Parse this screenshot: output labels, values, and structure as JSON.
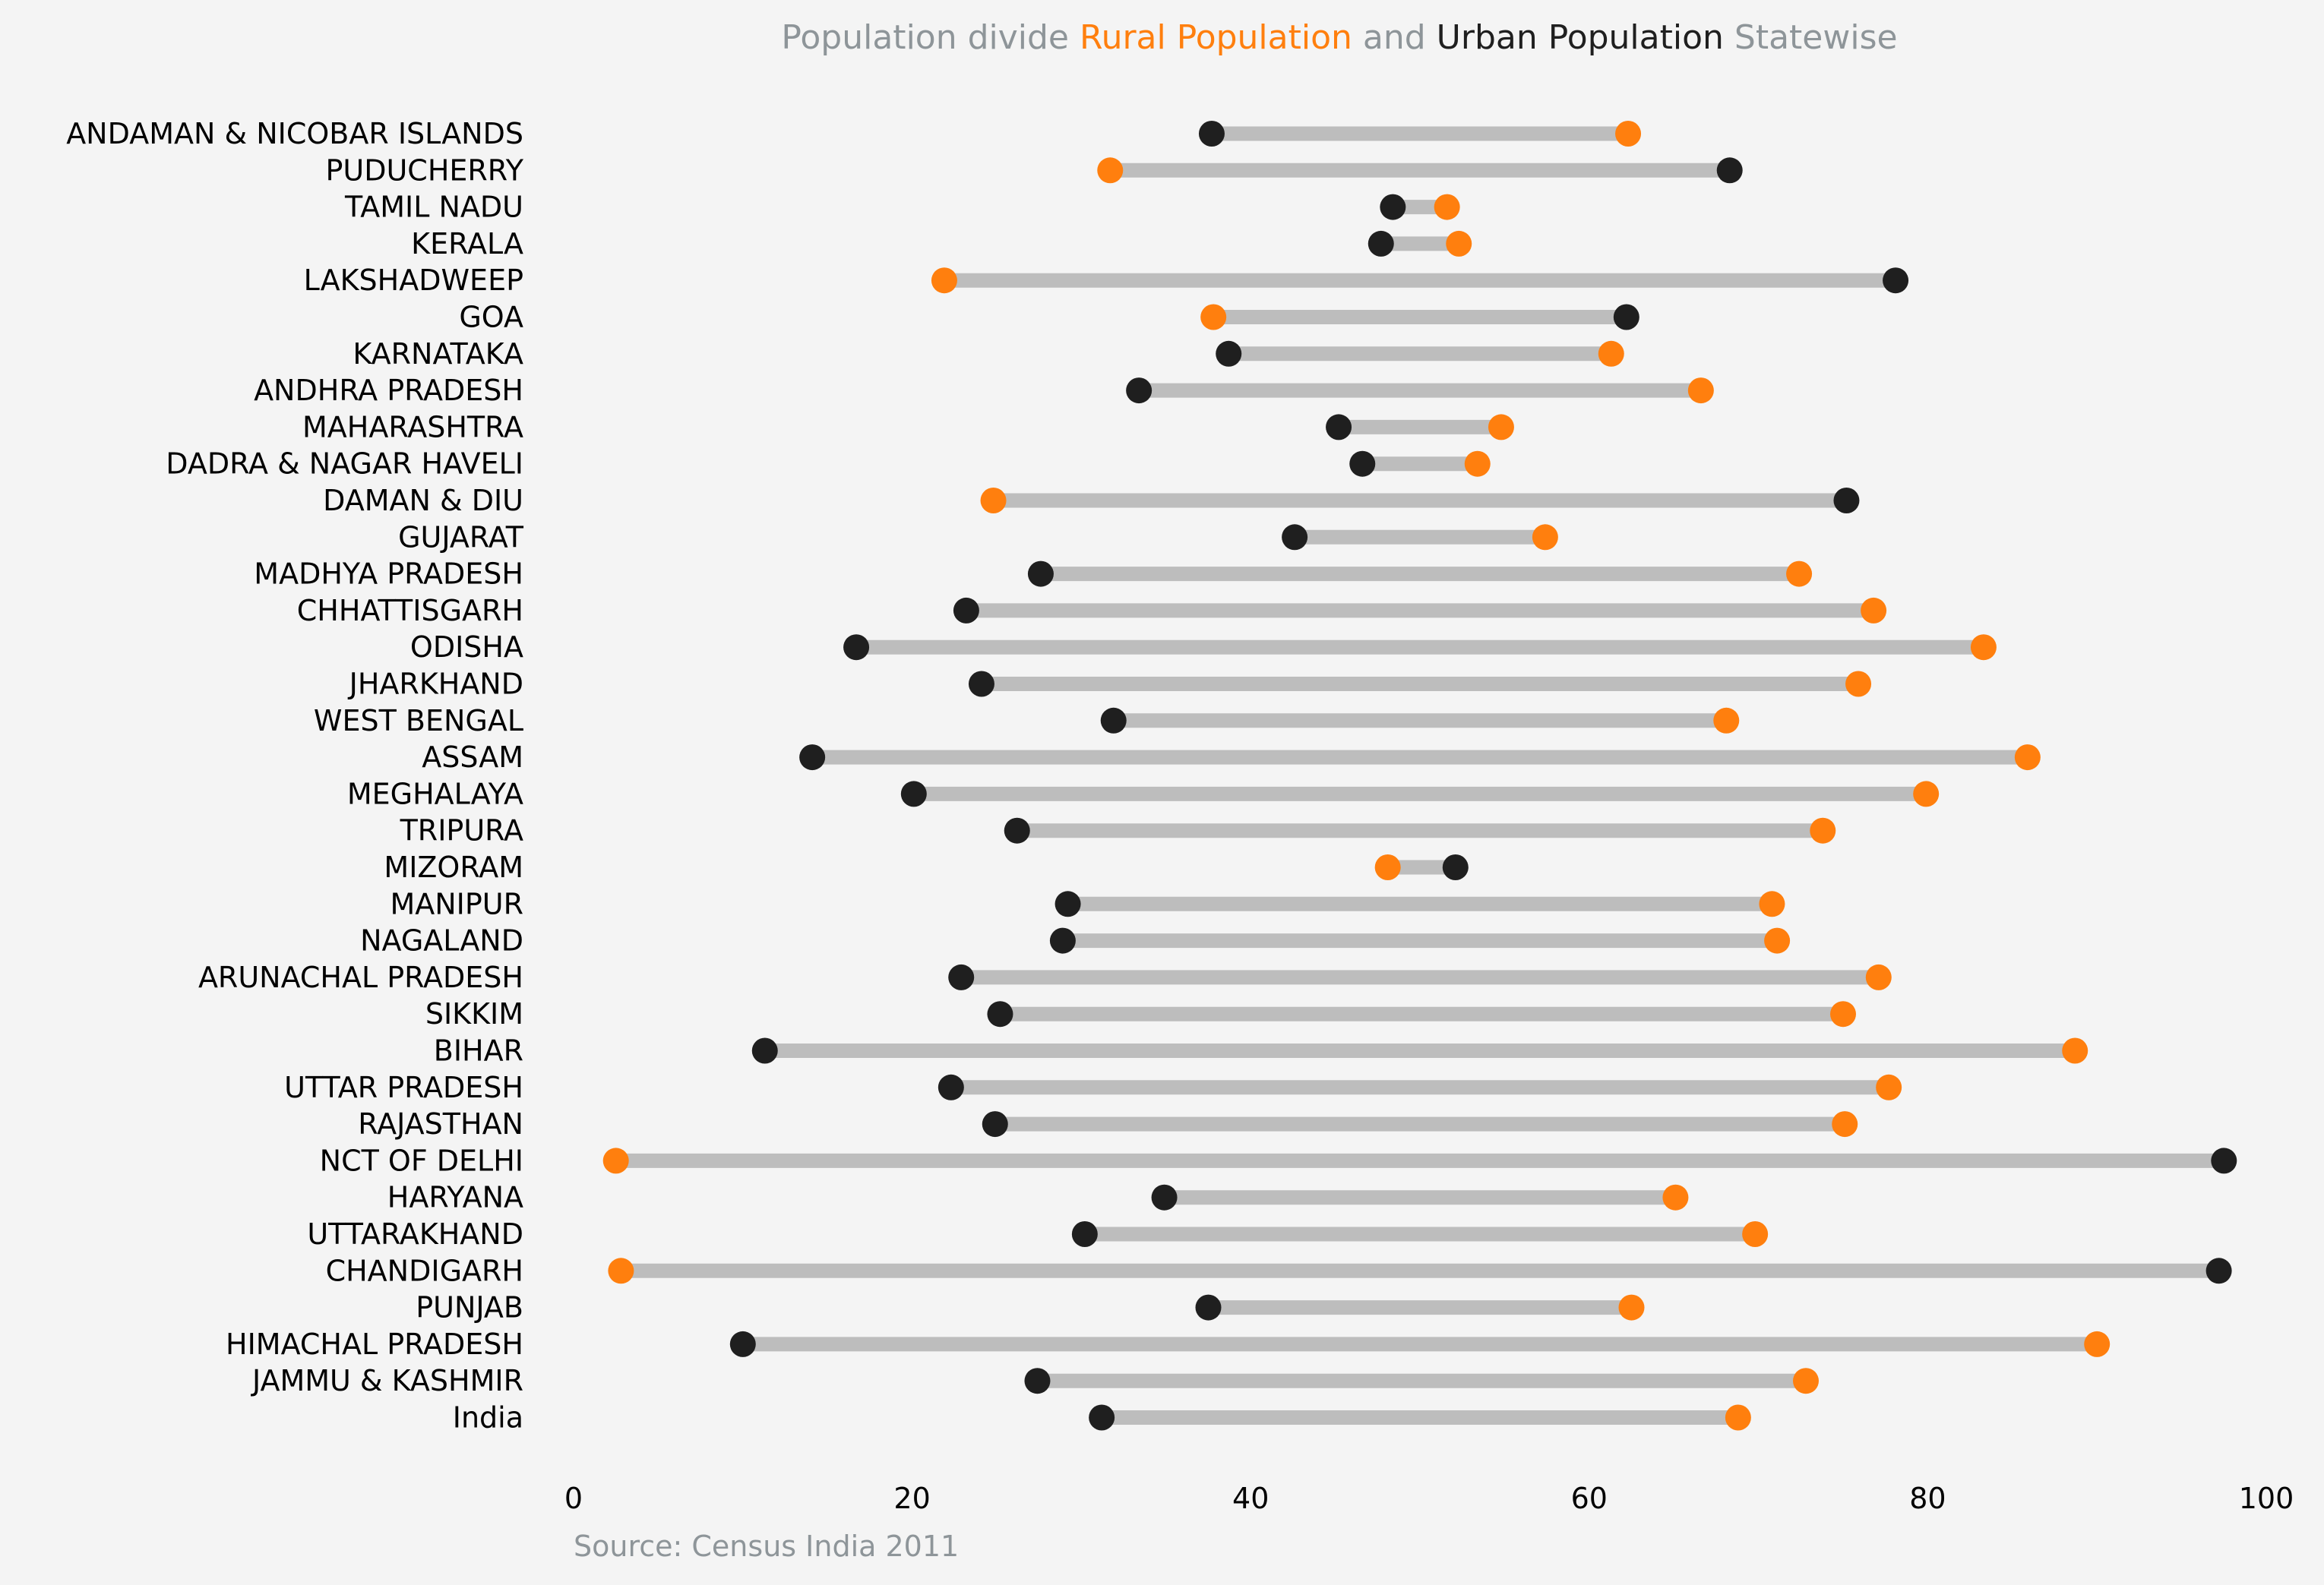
{
  "colors": {
    "background": "#f4f4f4",
    "rural": "#ff7f0e",
    "urban": "#1f1f1f",
    "connector": "#bdbdbd",
    "muted_text": "#8e9599",
    "tick_text": "#000000"
  },
  "title": {
    "part1": "Population divide ",
    "rural_label": "Rural Population",
    "part2": " and ",
    "urban_label": "Urban Population",
    "part3": " Statewise"
  },
  "source": "Source: Census India 2011",
  "chart_data": {
    "type": "dumbbell",
    "xlim": [
      0,
      100
    ],
    "xticks": [
      "0",
      "20",
      "40",
      "60",
      "80",
      "100"
    ],
    "grid": false,
    "series": [
      {
        "name": "Rural Population",
        "key": "rural"
      },
      {
        "name": "Urban Population",
        "key": "urban"
      }
    ],
    "categories": [
      "ANDAMAN & NICOBAR ISLANDS",
      "PUDUCHERRY",
      "TAMIL NADU",
      "KERALA",
      "LAKSHADWEEP",
      "GOA",
      "KARNATAKA",
      "ANDHRA PRADESH",
      "MAHARASHTRA",
      "DADRA & NAGAR HAVELI",
      "DAMAN & DIU",
      "GUJARAT",
      "MADHYA PRADESH",
      "CHHATTISGARH",
      "ODISHA",
      "JHARKHAND",
      "WEST BENGAL",
      "ASSAM",
      "MEGHALAYA",
      "TRIPURA",
      "MIZORAM",
      "MANIPUR",
      "NAGALAND",
      "ARUNACHAL PRADESH",
      "SIKKIM",
      "BIHAR",
      "UTTAR PRADESH",
      "RAJASTHAN",
      "NCT OF DELHI",
      "HARYANA",
      "UTTARAKHAND",
      "CHANDIGARH",
      "PUNJAB",
      "HIMACHAL PRADESH",
      "JAMMU & KASHMIR",
      "India"
    ],
    "rural": [
      62.3,
      31.7,
      51.6,
      52.3,
      21.9,
      37.8,
      61.3,
      66.6,
      54.8,
      53.4,
      24.8,
      57.4,
      72.4,
      76.8,
      83.3,
      75.9,
      68.1,
      85.9,
      79.9,
      73.8,
      48.1,
      70.8,
      71.1,
      77.1,
      75.0,
      88.7,
      77.7,
      75.1,
      2.5,
      65.1,
      69.8,
      2.8,
      62.5,
      90.0,
      72.8,
      68.8
    ],
    "urban": [
      37.7,
      68.3,
      48.4,
      47.7,
      78.1,
      62.2,
      38.7,
      33.4,
      45.2,
      46.6,
      75.2,
      42.6,
      27.6,
      23.2,
      16.7,
      24.1,
      31.9,
      14.1,
      20.1,
      26.2,
      52.1,
      29.2,
      28.9,
      22.9,
      25.2,
      11.3,
      22.3,
      24.9,
      97.5,
      34.9,
      30.2,
      97.2,
      37.5,
      10.0,
      27.4,
      31.2
    ]
  }
}
